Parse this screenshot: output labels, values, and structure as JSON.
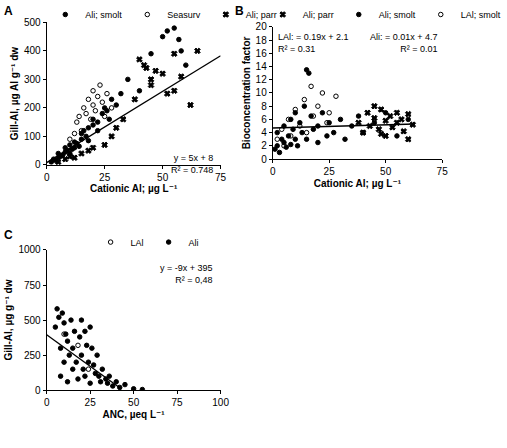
{
  "chart_data": [
    {
      "type": "scatter",
      "title": "A",
      "x_label": "Cationic Al; µg L⁻¹",
      "y_label": "Gill-Al, µg Al g⁻¹ dw",
      "xlim": [
        0,
        75
      ],
      "xticks": [
        0,
        25,
        50,
        75
      ],
      "ylim": [
        0,
        500
      ],
      "yticks": [
        0,
        100,
        200,
        300,
        400,
        500
      ],
      "grid": false,
      "legend": "top",
      "annotations": [
        [
          "y = 5x + 8",
          "R² = 0.748"
        ]
      ],
      "series": [
        {
          "name": "Ali; smolt",
          "color": "#000000",
          "marker": "circle",
          "x": [
            2,
            3,
            4,
            5,
            5,
            6,
            7,
            8,
            8,
            9,
            10,
            10,
            11,
            12,
            12,
            13,
            14,
            15,
            15,
            16,
            17,
            18,
            18,
            20,
            20,
            22,
            22,
            24,
            25,
            26,
            27,
            28,
            30,
            32,
            35,
            40,
            45,
            50,
            52,
            55,
            57,
            58,
            60
          ],
          "values": [
            10,
            20,
            15,
            25,
            40,
            30,
            35,
            45,
            60,
            50,
            40,
            70,
            55,
            60,
            80,
            75,
            65,
            90,
            110,
            120,
            100,
            130,
            85,
            140,
            160,
            150,
            120,
            180,
            200,
            190,
            160,
            230,
            210,
            250,
            300,
            260,
            390,
            450,
            470,
            480,
            440,
            400,
            350
          ]
        },
        {
          "name": "Seasurv",
          "color": "#000000",
          "marker": "circle-open",
          "x": [
            10,
            12,
            13,
            14,
            15,
            16,
            17,
            18,
            19,
            20,
            20,
            21,
            22,
            23,
            24,
            25,
            26,
            28
          ],
          "values": [
            90,
            110,
            150,
            170,
            120,
            200,
            180,
            230,
            160,
            210,
            260,
            190,
            240,
            280,
            220,
            170,
            250,
            200
          ]
        },
        {
          "name": "Ali; parr",
          "color": "#000000",
          "marker": "x",
          "x": [
            5,
            8,
            10,
            12,
            15,
            18,
            20,
            25,
            28,
            30,
            33,
            38,
            40,
            42,
            43,
            45,
            45,
            47,
            50,
            52,
            55,
            55,
            58,
            62,
            65
          ],
          "values": [
            10,
            20,
            30,
            25,
            40,
            50,
            60,
            70,
            100,
            130,
            160,
            230,
            370,
            350,
            340,
            280,
            300,
            330,
            320,
            250,
            390,
            260,
            310,
            210,
            400
          ]
        },
        {
          "type": "line",
          "color": "#000000",
          "line_style": "solid",
          "x": [
            0,
            75
          ],
          "values": [
            8,
            383
          ]
        }
      ]
    },
    {
      "type": "scatter",
      "title": "B",
      "x_label": "Cationic Al; µg L⁻¹",
      "y_label": "Bioconcentration factor",
      "xlim": [
        0,
        75
      ],
      "xticks": [
        0,
        25,
        50,
        75
      ],
      "ylim": [
        0,
        20
      ],
      "yticks": [
        0,
        2,
        4,
        6,
        8,
        10,
        12,
        14,
        16,
        18,
        20
      ],
      "grid": false,
      "legend": "top",
      "annotations": [
        [
          "LAl: = 0.19x + 2.1",
          "R² = 0.31"
        ],
        [
          "Ali: = 0.01x + 4.7",
          "R² = 0.01"
        ]
      ],
      "series": [
        {
          "name": "Ali; parr",
          "color": "#000000",
          "marker": "x",
          "x": [
            38,
            40,
            42,
            43,
            45,
            47,
            48,
            50,
            50,
            52,
            53,
            55,
            55,
            57,
            58,
            60,
            60,
            62,
            45,
            48
          ],
          "values": [
            5.5,
            4.0,
            7.0,
            5.0,
            6.2,
            4.5,
            7.5,
            5.8,
            3.5,
            6.5,
            4.8,
            7.0,
            5.5,
            6.0,
            4.2,
            6.8,
            3.0,
            5.2,
            8.0,
            3.8
          ]
        },
        {
          "name": "Ali; smolt",
          "color": "#000000",
          "marker": "circle",
          "x": [
            1,
            2,
            2,
            3,
            4,
            5,
            5,
            6,
            7,
            8,
            8,
            9,
            10,
            10,
            11,
            12,
            13,
            14,
            15,
            15,
            16,
            17,
            18,
            20,
            20,
            22,
            24,
            25,
            27,
            30,
            32,
            35,
            38,
            40,
            45,
            50,
            55,
            60
          ],
          "values": [
            1.5,
            2.0,
            4.0,
            1.0,
            3.0,
            2.5,
            5.0,
            1.8,
            3.5,
            2.2,
            6.0,
            4.5,
            3.0,
            7.0,
            2.0,
            5.5,
            4.0,
            8.0,
            13.5,
            3.0,
            13.0,
            6.5,
            4.5,
            5.0,
            2.5,
            7.0,
            3.5,
            5.5,
            4.0,
            6.0,
            3.0,
            5.0,
            6.5,
            4.0,
            5.5,
            7.0,
            3.5,
            6.0
          ]
        },
        {
          "name": "LAl; smolt",
          "color": "#000000",
          "marker": "circle-open",
          "x": [
            2,
            4,
            5,
            7,
            8,
            10,
            12,
            14,
            15,
            17,
            18,
            20,
            22,
            24,
            25,
            28
          ],
          "values": [
            3.0,
            4.5,
            2.0,
            6.0,
            3.5,
            7.5,
            5.0,
            9.0,
            4.0,
            11.0,
            6.5,
            8.0,
            10.0,
            5.5,
            7.0,
            9.5
          ]
        },
        {
          "type": "line",
          "color": "#000000",
          "line_style": "solid",
          "x": [
            0,
            63
          ],
          "values": [
            4.7,
            5.3
          ]
        }
      ]
    },
    {
      "type": "scatter",
      "title": "C",
      "x_label": "ANC, µeq L⁻¹",
      "y_label": "Gill-Al, µg g⁻¹ dw",
      "xlim": [
        0,
        100
      ],
      "xticks": [
        0,
        25,
        50,
        75,
        100
      ],
      "ylim": [
        0,
        1000
      ],
      "yticks": [
        0,
        250,
        500,
        750,
        1000
      ],
      "grid": false,
      "legend": "top",
      "annotations": [
        [
          "y = -9x + 395",
          "R² = 0,48"
        ]
      ],
      "series": [
        {
          "name": "LAl",
          "color": "#000000",
          "marker": "circle-open",
          "x": [
            10,
            18,
            24
          ],
          "values": [
            400,
            320,
            150
          ]
        },
        {
          "name": "Ali",
          "color": "#000000",
          "marker": "circle",
          "x": [
            5,
            6,
            7,
            8,
            8,
            9,
            10,
            10,
            11,
            12,
            12,
            13,
            14,
            15,
            15,
            16,
            17,
            18,
            19,
            20,
            20,
            21,
            22,
            22,
            23,
            24,
            25,
            25,
            26,
            27,
            28,
            29,
            30,
            31,
            32,
            34,
            35,
            36,
            38,
            40,
            42,
            45,
            50,
            55
          ],
          "values": [
            450,
            580,
            520,
            300,
            100,
            550,
            480,
            200,
            400,
            350,
            60,
            250,
            500,
            300,
            150,
            420,
            200,
            80,
            380,
            500,
            250,
            150,
            420,
            100,
            320,
            200,
            450,
            50,
            300,
            180,
            120,
            250,
            100,
            60,
            150,
            80,
            50,
            100,
            30,
            60,
            20,
            40,
            10,
            5
          ]
        },
        {
          "type": "line",
          "color": "#000000",
          "line_style": "solid",
          "x": [
            0,
            43
          ],
          "values": [
            395,
            8
          ]
        }
      ]
    }
  ]
}
